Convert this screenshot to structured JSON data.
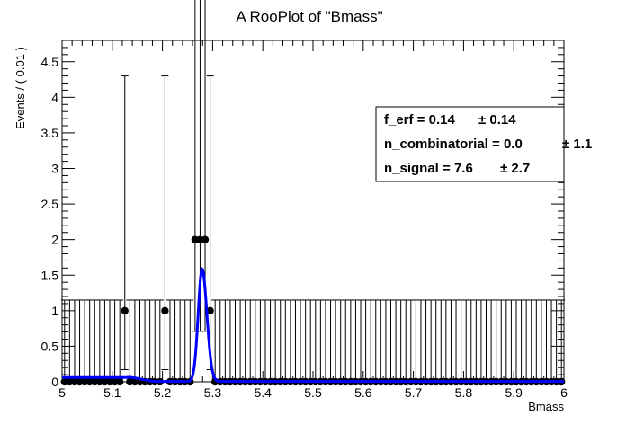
{
  "chart_data": {
    "type": "scatter",
    "title": "A RooPlot of \"Bmass\"",
    "xlabel": "Bmass",
    "ylabel": "Events / ( 0.01 )",
    "xlim": [
      5,
      6
    ],
    "ylim": [
      0,
      4.8
    ],
    "grid": false,
    "legend": "none",
    "x_ticks": [
      "5",
      "5.1",
      "5.2",
      "5.3",
      "5.4",
      "5.5",
      "5.6",
      "5.7",
      "5.8",
      "5.9",
      "6"
    ],
    "y_ticks": [
      "0",
      "0.5",
      "1",
      "1.5",
      "2",
      "2.5",
      "3",
      "3.5",
      "4",
      "4.5"
    ],
    "data_points": {
      "bin_width": 0.01,
      "x_start": 5.005,
      "counts": [
        0,
        0,
        0,
        0,
        0,
        0,
        0,
        0,
        0,
        0,
        0,
        0,
        0,
        0,
        0,
        0,
        0,
        0,
        0,
        0,
        0,
        0,
        1,
        0,
        0,
        0,
        0,
        0,
        0,
        0,
        1,
        0,
        0,
        0,
        0,
        0,
        0,
        0,
        0,
        0,
        0,
        0,
        0,
        0,
        0,
        0,
        0,
        0,
        0,
        0,
        0,
        0,
        0,
        0,
        0,
        0,
        0,
        0,
        0,
        0,
        0,
        0,
        0,
        0,
        0,
        0,
        0,
        0,
        0,
        0,
        0,
        0,
        0,
        0,
        0,
        0,
        0,
        0,
        0,
        0,
        0,
        0,
        0,
        0,
        0,
        0,
        0,
        0,
        0,
        0,
        0,
        0,
        0,
        0,
        0,
        0,
        0,
        0,
        0,
        0
      ],
      "overrides": {
        "5.125": 1,
        "5.205": 1,
        "5.265": 2,
        "5.275": 2,
        "5.285": 2,
        "5.295": 1
      },
      "err_upper_for_count": {
        "0": 1.15,
        "1": 3.3,
        "2": 4.63
      },
      "err_lower_for_count": {
        "0": 0,
        "1": 0.83,
        "2": 1.29
      },
      "color": "#000000"
    },
    "fit_curve": {
      "color": "#0000ff",
      "flat_level": 0.06,
      "flat_end": 5.13,
      "drop_end": 5.19,
      "peak_x": 5.279,
      "peak_y": 1.58,
      "sigma_left": 0.0078,
      "sigma_right": 0.0095
    },
    "stats_box": [
      {
        "label": "f_erf =  0.14",
        "err": "± 0.14"
      },
      {
        "label": "n_combinatorial =  0.0",
        "err": "± 1.1"
      },
      {
        "label": "n_signal =  7.6",
        "err": "± 2.7"
      }
    ]
  }
}
